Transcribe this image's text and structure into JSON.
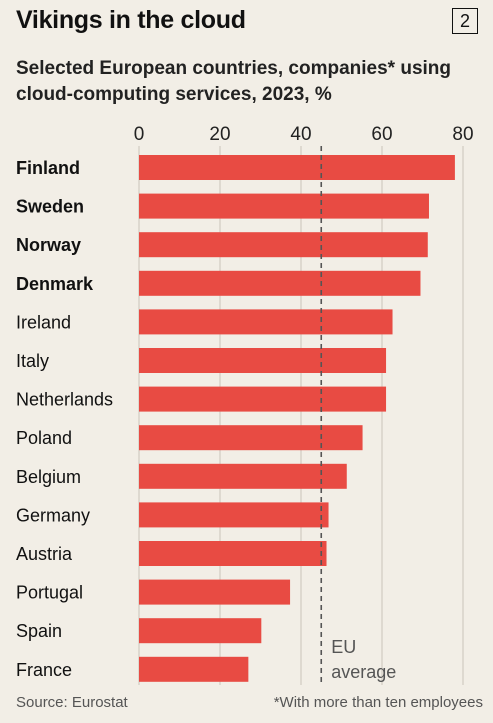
{
  "header": {
    "title": "Vikings in the cloud",
    "badge": "2",
    "subtitle": "Selected European countries, companies* using cloud-computing services, 2023, %"
  },
  "footer": {
    "source": "Source: Eurostat",
    "footnote": "*With more than ten employees"
  },
  "chart_data": {
    "type": "bar",
    "orientation": "horizontal",
    "categories": [
      "Finland",
      "Sweden",
      "Norway",
      "Denmark",
      "Ireland",
      "Italy",
      "Netherlands",
      "Poland",
      "Belgium",
      "Germany",
      "Austria",
      "Portugal",
      "Spain",
      "France"
    ],
    "bold_categories": [
      "Finland",
      "Sweden",
      "Norway",
      "Denmark"
    ],
    "values": [
      78,
      71.6,
      71.3,
      69.5,
      62.6,
      61,
      61,
      55.2,
      51.3,
      46.8,
      46.3,
      37.3,
      30.2,
      27
    ],
    "xlim": [
      0,
      80
    ],
    "ticks": [
      0,
      20,
      40,
      60,
      80
    ],
    "tick_position": "top",
    "grid": true,
    "reference_line": {
      "value": 45,
      "label_line1": "EU",
      "label_line2": "average"
    },
    "colors": {
      "bar": "#e84b43",
      "background": "#f2eee6",
      "grid": "#c9c4bb"
    }
  }
}
